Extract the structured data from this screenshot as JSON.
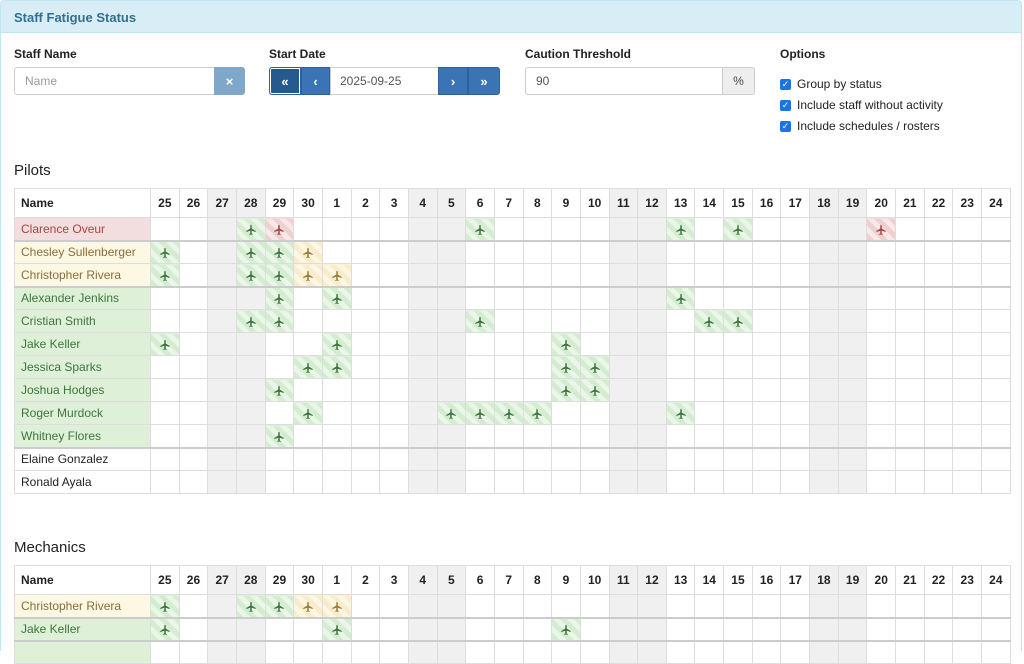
{
  "panel": {
    "title": "Staff Fatigue Status"
  },
  "filters": {
    "staff_name": {
      "label": "Staff Name",
      "placeholder": "Name",
      "value": "",
      "clear_label": "×"
    },
    "start_date": {
      "label": "Start Date",
      "value": "2025-09-25",
      "prev_far": "«",
      "prev": "‹",
      "next": "›",
      "next_far": "»"
    },
    "caution": {
      "label": "Caution Threshold",
      "value": "90",
      "unit": "%"
    },
    "options": {
      "label": "Options",
      "items": [
        {
          "label": "Group by status",
          "checked": true
        },
        {
          "label": "Include staff without activity",
          "checked": true
        },
        {
          "label": "Include schedules / rosters",
          "checked": true
        }
      ]
    }
  },
  "colors": {
    "green": "#3c763d",
    "yellow": "#9a7a3a",
    "red": "#a94442",
    "weekend": "#f0f0f0"
  },
  "day_headers": [
    "25",
    "26",
    "27",
    "28",
    "29",
    "30",
    "1",
    "2",
    "3",
    "4",
    "5",
    "6",
    "7",
    "8",
    "9",
    "10",
    "11",
    "12",
    "13",
    "14",
    "15",
    "16",
    "17",
    "18",
    "19",
    "20",
    "21",
    "22",
    "23",
    "24"
  ],
  "weekend_indices": [
    2,
    3,
    9,
    10,
    16,
    17,
    23,
    24
  ],
  "name_header": "Name",
  "activity_icon": "plane-icon",
  "sections": [
    {
      "title": "Pilots",
      "rows": [
        {
          "name": "Clarence Oveur",
          "status": "red",
          "cells": {
            "3": "green",
            "4": "red",
            "11": "green",
            "18": "green",
            "20": "green",
            "25": "red"
          }
        },
        {
          "name": "Chesley Sullenberger",
          "status": "yellow",
          "sep": true,
          "cells": {
            "0": "green",
            "3": "green",
            "4": "green",
            "5": "yellow"
          }
        },
        {
          "name": "Christopher Rivera",
          "status": "yellow",
          "cells": {
            "0": "green",
            "3": "green",
            "4": "green",
            "5": "yellow",
            "6": "yellow"
          }
        },
        {
          "name": "Alexander Jenkins",
          "status": "green",
          "sep": true,
          "cells": {
            "4": "green",
            "6": "green",
            "18": "green"
          }
        },
        {
          "name": "Cristian Smith",
          "status": "green",
          "cells": {
            "3": "green",
            "4": "green",
            "11": "green",
            "19": "green",
            "20": "green"
          }
        },
        {
          "name": "Jake Keller",
          "status": "green",
          "cells": {
            "0": "green",
            "6": "green",
            "14": "green"
          }
        },
        {
          "name": "Jessica Sparks",
          "status": "green",
          "cells": {
            "5": "green",
            "6": "green",
            "14": "green",
            "15": "green"
          }
        },
        {
          "name": "Joshua Hodges",
          "status": "green",
          "cells": {
            "4": "green",
            "14": "green",
            "15": "green"
          }
        },
        {
          "name": "Roger Murdock",
          "status": "green",
          "cells": {
            "5": "green",
            "10": "green",
            "11": "green",
            "12": "green",
            "13": "green",
            "18": "green"
          }
        },
        {
          "name": "Whitney Flores",
          "status": "green",
          "cells": {
            "4": "green"
          }
        },
        {
          "name": "Elaine Gonzalez",
          "status": "none",
          "sep": true,
          "cells": {}
        },
        {
          "name": "Ronald Ayala",
          "status": "none",
          "cells": {}
        }
      ]
    },
    {
      "title": "Mechanics",
      "rows": [
        {
          "name": "Christopher Rivera",
          "status": "yellow",
          "cells": {
            "0": "green",
            "3": "green",
            "4": "green",
            "5": "yellow",
            "6": "yellow"
          }
        },
        {
          "name": "Jake Keller",
          "status": "green",
          "sep": true,
          "cells": {
            "0": "green",
            "6": "green",
            "14": "green"
          }
        },
        {
          "name": "",
          "status": "green",
          "sep": true,
          "cells": {}
        }
      ]
    }
  ]
}
